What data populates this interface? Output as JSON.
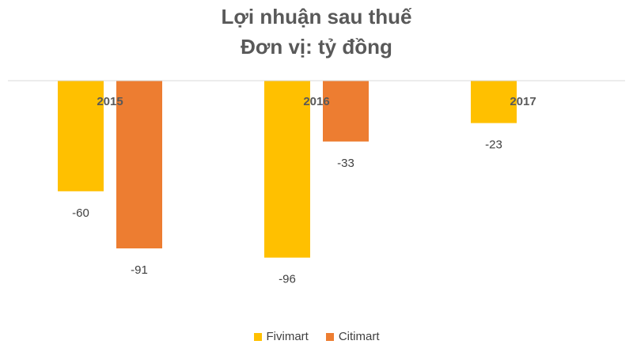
{
  "chart_data": {
    "type": "bar",
    "title": "Lợi nhuận sau thuế",
    "subtitle": "Đơn vị: tỷ đồng",
    "categories": [
      "2015",
      "2016",
      "2017"
    ],
    "series": [
      {
        "name": "Fivimart",
        "color": "#FFC000",
        "values": [
          -60,
          -96,
          -23
        ]
      },
      {
        "name": "Citimart",
        "color": "#ED7D31",
        "values": [
          -91,
          -33,
          null
        ]
      }
    ],
    "data_labels": [
      [
        "-60",
        "-96",
        "-23"
      ],
      [
        "-91",
        "-33",
        ""
      ]
    ],
    "ylim": [
      -100,
      0
    ],
    "grid": false,
    "legend": "bottom"
  }
}
